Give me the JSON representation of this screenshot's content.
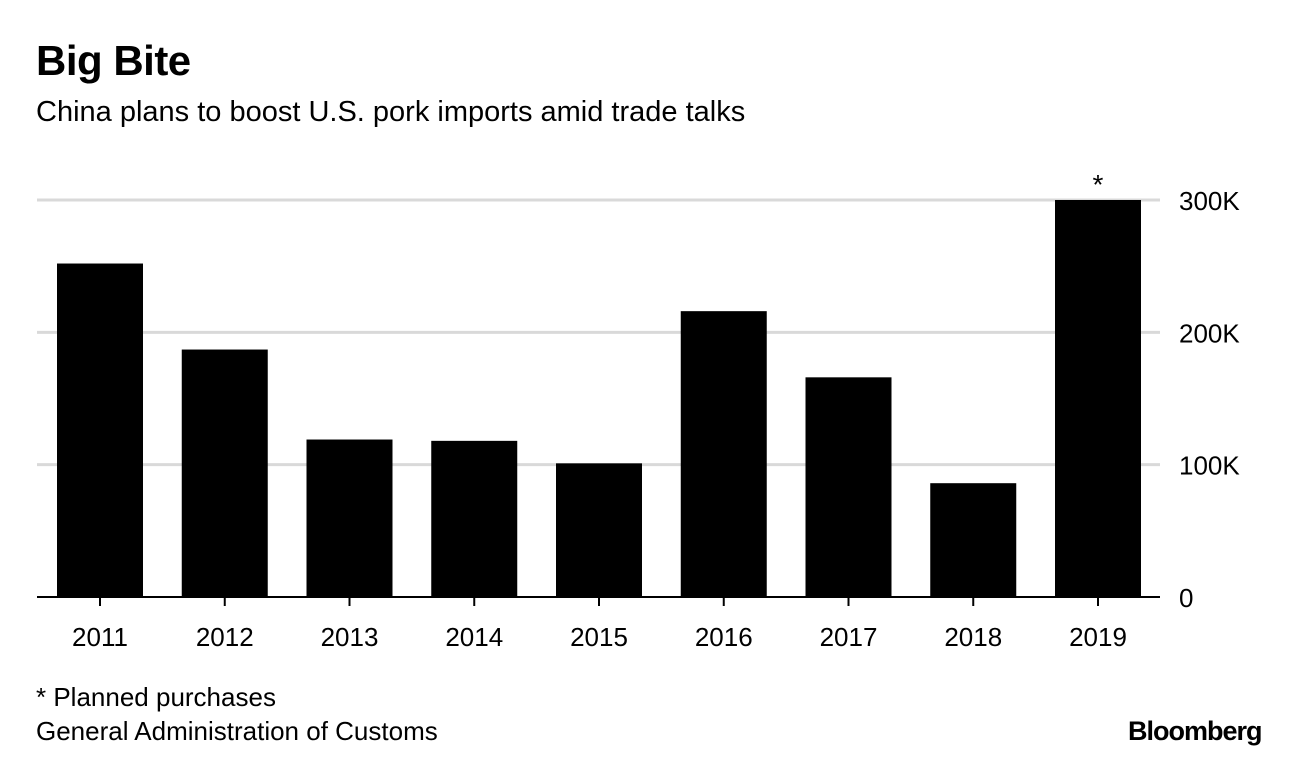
{
  "header": {
    "title": "Big Bite",
    "subtitle": "China plans to boost U.S. pork imports amid trade talks"
  },
  "footer": {
    "footnote": "* Planned purchases",
    "source": "General Administration of Customs",
    "brand": "Bloomberg"
  },
  "colors": {
    "bar": "#000000",
    "grid": "#d9d9d9",
    "axis": "#000000",
    "background": "#ffffff"
  },
  "chart_data": {
    "type": "bar",
    "title": "Big Bite",
    "subtitle": "China plans to boost U.S. pork imports amid trade talks",
    "xlabel": "",
    "ylabel": "",
    "categories": [
      "2011",
      "2012",
      "2013",
      "2014",
      "2015",
      "2016",
      "2017",
      "2018",
      "2019"
    ],
    "values": [
      252000,
      187000,
      119000,
      118000,
      101000,
      216000,
      166000,
      86000,
      300000
    ],
    "ylim": [
      0,
      300000
    ],
    "y_ticks": [
      0,
      100000,
      200000,
      300000
    ],
    "y_tick_labels": [
      "0",
      "100K",
      "200K",
      "300K"
    ],
    "y_axis_side": "right",
    "grid": true,
    "annotations": [
      {
        "category": "2019",
        "text": "*"
      }
    ]
  }
}
